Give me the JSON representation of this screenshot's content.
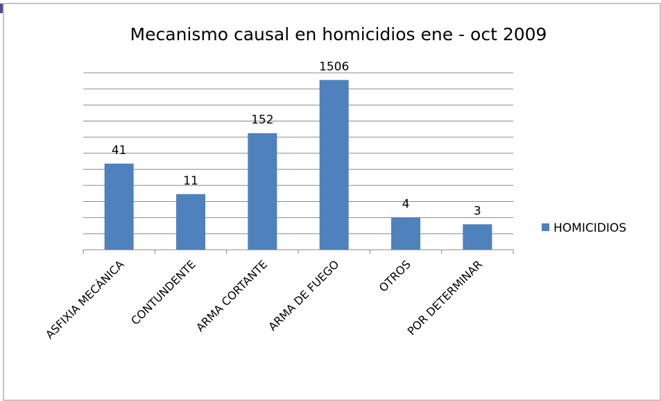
{
  "chart_data": {
    "type": "bar",
    "title": "Mecanismo causal en homicidios ene - oct 2009",
    "categories": [
      "ASFIXIA MECÁNICA",
      "CONTUNDENTE",
      "ARMA CORTANTE",
      "ARMA DE FUEGO",
      "OTROS",
      "POR DETERMINAR"
    ],
    "series": [
      {
        "name": "HOMICIDIOS",
        "color": "#4f81bd",
        "values": [
          41,
          11,
          152,
          1506,
          4,
          3
        ]
      }
    ],
    "log_scale": true,
    "log_base": 2,
    "ylim": [
      1,
      2048
    ],
    "yticks": [
      1,
      2,
      4,
      8,
      16,
      32,
      64,
      128,
      256,
      512,
      1024,
      2048
    ],
    "grid": true,
    "legend": "right"
  }
}
